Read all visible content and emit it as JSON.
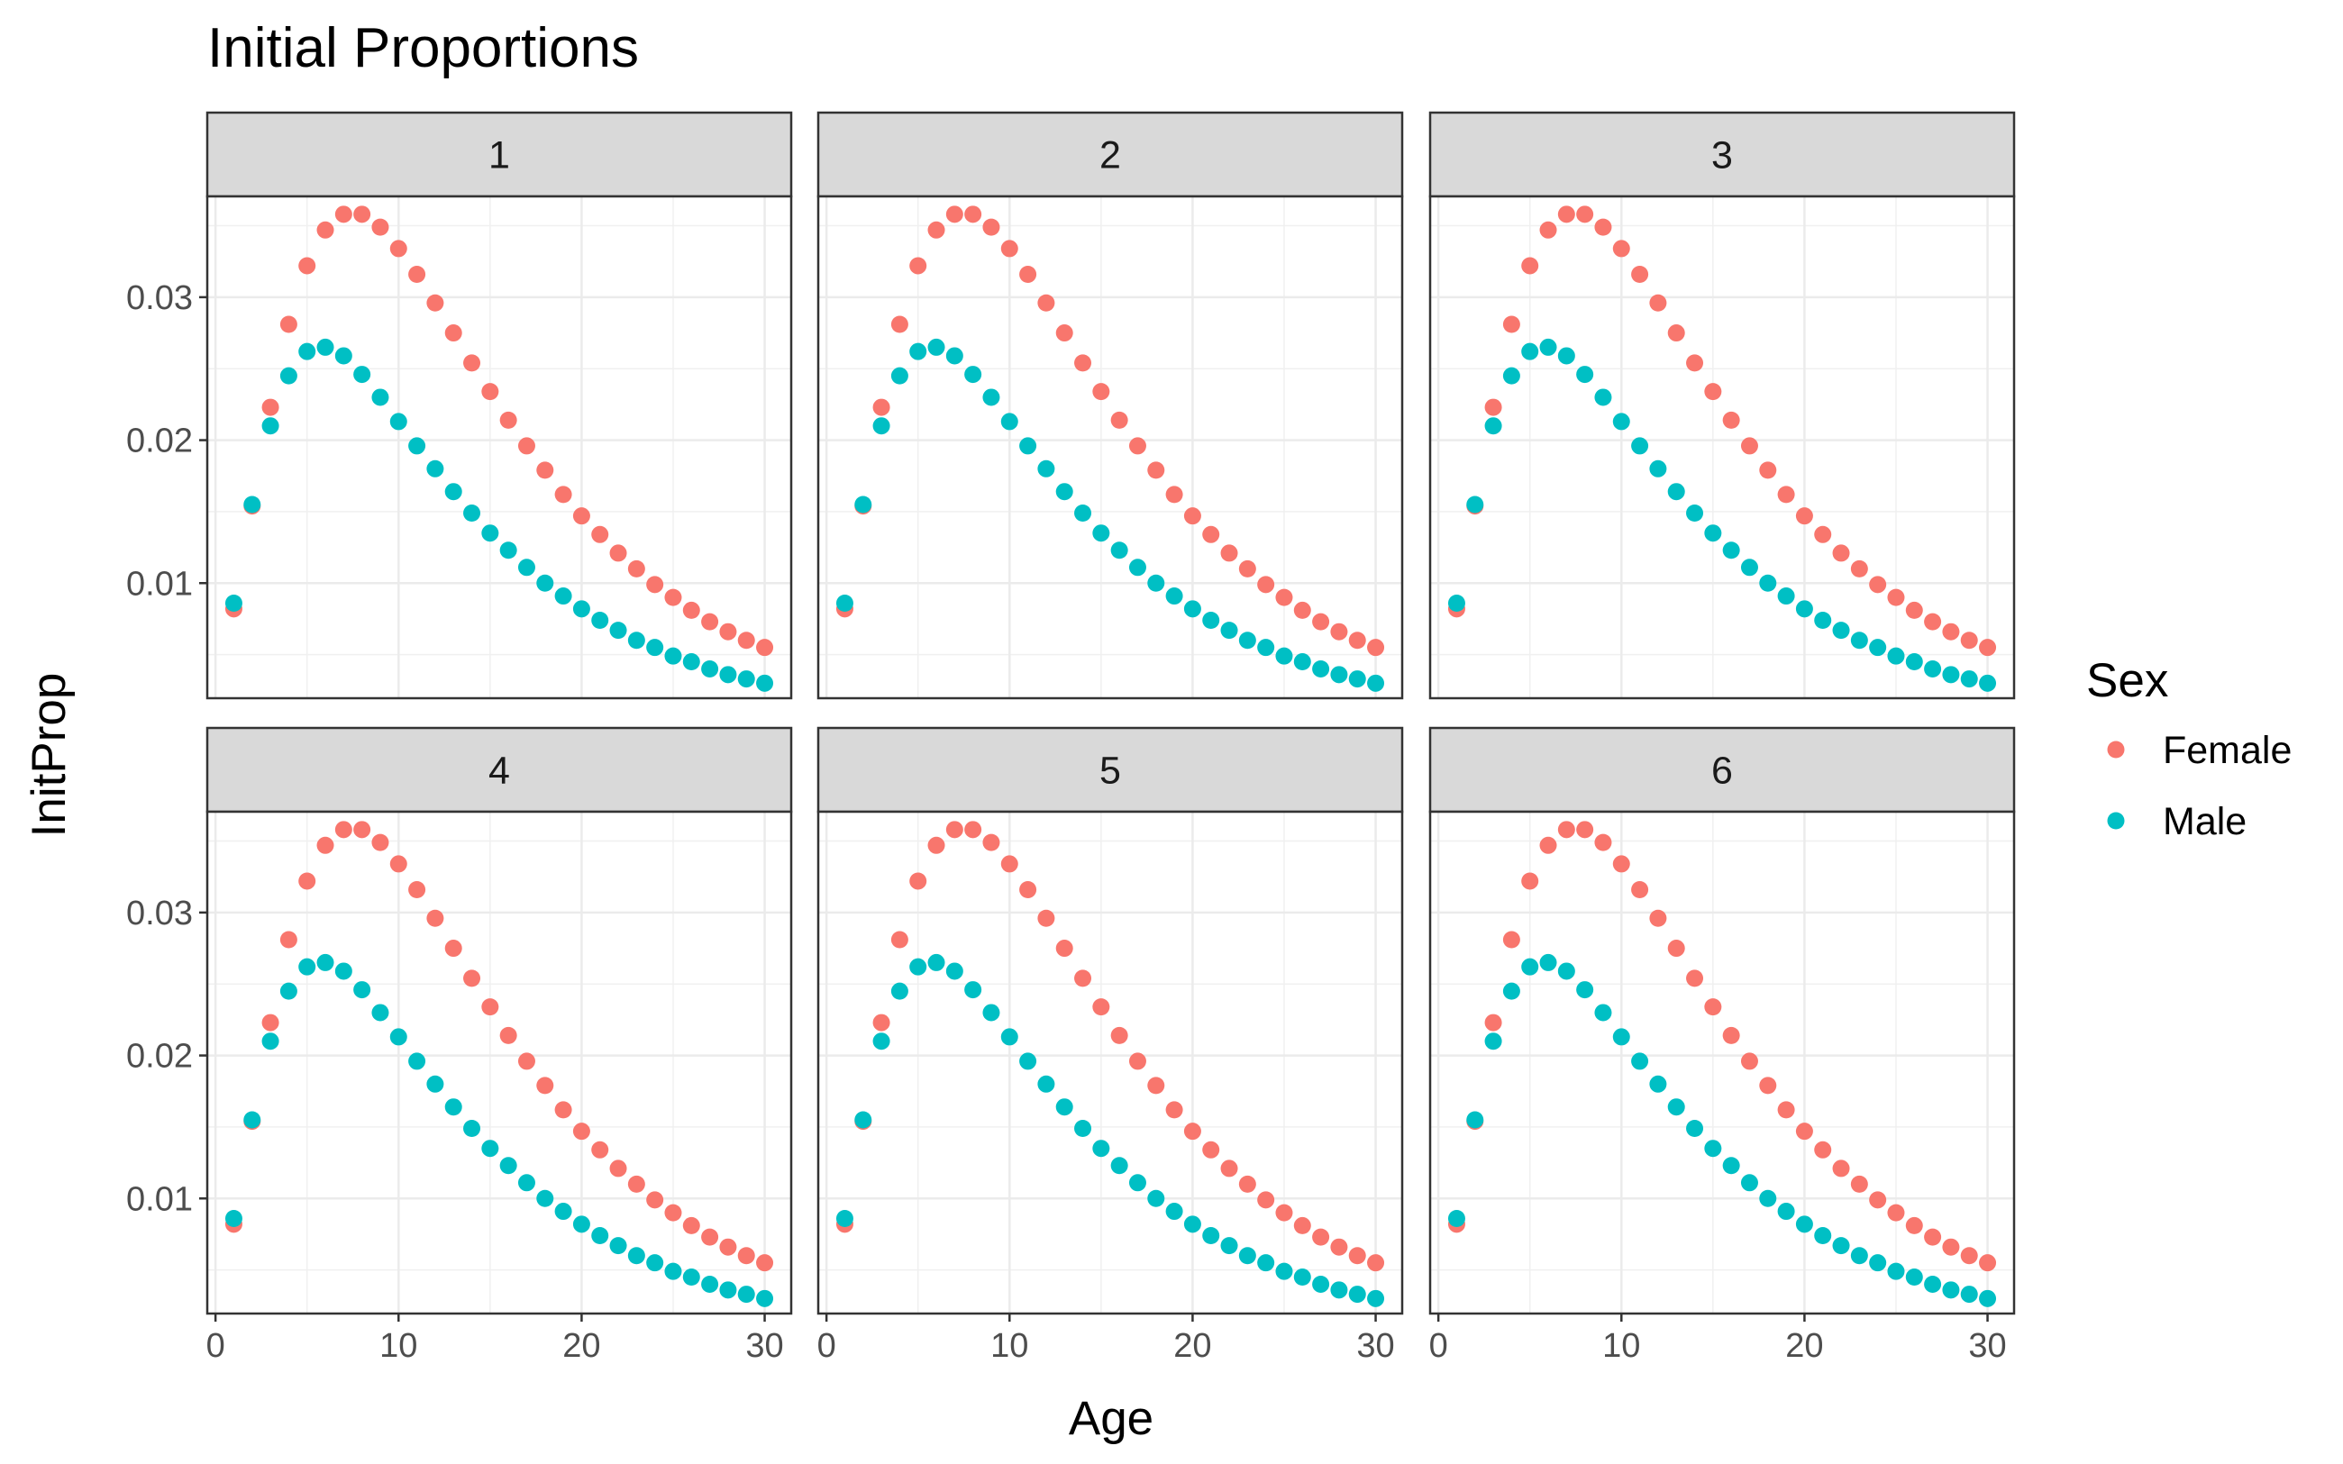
{
  "chart_data": {
    "type": "scatter",
    "title": "Initial Proportions",
    "xlabel": "Age",
    "ylabel": "InitProp",
    "xlim": [
      -0.45,
      31.45
    ],
    "ylim": [
      0.00195,
      0.03705
    ],
    "xticks": [
      0,
      10,
      20,
      30
    ],
    "xtick_labels": [
      "0",
      "10",
      "20",
      "30"
    ],
    "yticks": [
      0.01,
      0.02,
      0.03
    ],
    "ytick_labels": [
      "0.01",
      "0.02",
      "0.03"
    ],
    "grid": true,
    "legend": {
      "title": "Sex",
      "placement": "right",
      "entries": [
        "Female",
        "Male"
      ]
    },
    "panels": [
      "1",
      "2",
      "3",
      "4",
      "5",
      "6"
    ],
    "panel_layout": {
      "rows": 2,
      "cols": 3
    },
    "x": [
      1,
      2,
      3,
      4,
      5,
      6,
      7,
      8,
      9,
      10,
      11,
      12,
      13,
      14,
      15,
      16,
      17,
      18,
      19,
      20,
      21,
      22,
      23,
      24,
      25,
      26,
      27,
      28,
      29,
      30
    ],
    "series": [
      {
        "name": "Female",
        "color": "#F8766D",
        "values": [
          0.0082,
          0.0154,
          0.0223,
          0.0281,
          0.0322,
          0.0347,
          0.0358,
          0.0358,
          0.0349,
          0.0334,
          0.0316,
          0.0296,
          0.0275,
          0.0254,
          0.0234,
          0.0214,
          0.0196,
          0.0179,
          0.0162,
          0.0147,
          0.0134,
          0.0121,
          0.011,
          0.0099,
          0.009,
          0.0081,
          0.0073,
          0.0066,
          0.006,
          0.0055
        ]
      },
      {
        "name": "Male",
        "color": "#00BFC4",
        "values": [
          0.0086,
          0.0155,
          0.021,
          0.0245,
          0.0262,
          0.0265,
          0.0259,
          0.0246,
          0.023,
          0.0213,
          0.0196,
          0.018,
          0.0164,
          0.0149,
          0.0135,
          0.0123,
          0.0111,
          0.01,
          0.0091,
          0.0082,
          0.0074,
          0.0067,
          0.006,
          0.0055,
          0.0049,
          0.0045,
          0.004,
          0.0036,
          0.0033,
          0.003
        ]
      }
    ]
  }
}
